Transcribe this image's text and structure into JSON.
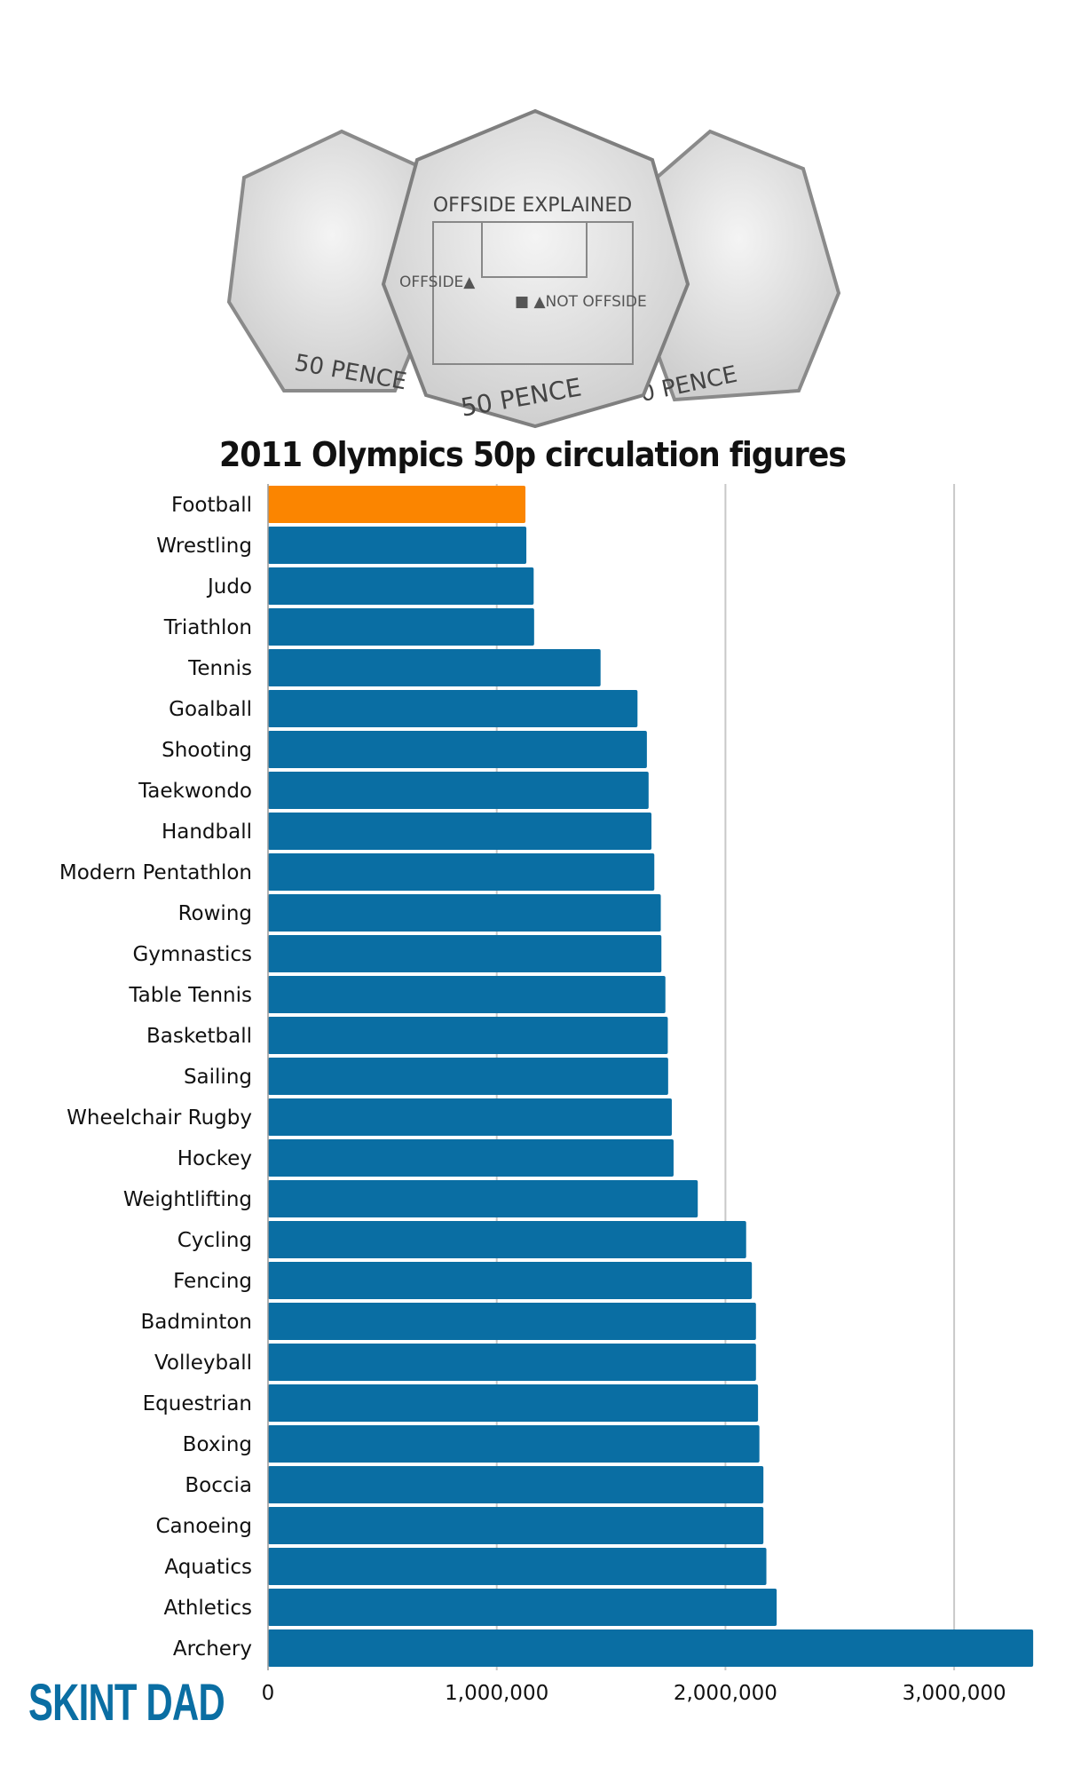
{
  "coins": {
    "left_coin_text": "50 PENCE",
    "center_coin_title": "OFFSIDE EXPLAINED",
    "center_coin_offside": "OFFSIDE▲",
    "center_coin_not_offside": "■ ▲NOT OFFSIDE",
    "center_coin_text": "50 PENCE",
    "right_coin_text": "0 PENCE"
  },
  "logo": "SKINT DAD",
  "colors": {
    "bar": "#0a6ea3",
    "highlight": "#fb8500",
    "grid": "#c8c8c8"
  },
  "chart_data": {
    "type": "bar",
    "orientation": "horizontal",
    "title": "2011 Olympics 50p circulation figures",
    "xlabel": "",
    "ylabel": "",
    "xlim": [
      0,
      3345500
    ],
    "xticks": [
      0,
      1000000,
      2000000,
      3000000
    ],
    "xtick_labels": [
      "0",
      "1,000,000",
      "2,000,000",
      "3,000,000"
    ],
    "grid": "vertical",
    "highlighted_category": "Football",
    "categories": [
      "Football",
      "Wrestling",
      "Judo",
      "Triathlon",
      "Tennis",
      "Goalball",
      "Shooting",
      "Taekwondo",
      "Handball",
      "Modern Pentathlon",
      "Rowing",
      "Gymnastics",
      "Table Tennis",
      "Basketball",
      "Sailing",
      "Wheelchair Rugby",
      "Hockey",
      "Weightlifting",
      "Cycling",
      "Fencing",
      "Badminton",
      "Volleyball",
      "Equestrian",
      "Boxing",
      "Boccia",
      "Canoeing",
      "Aquatics",
      "Athletics",
      "Archery"
    ],
    "values": [
      1125500,
      1129500,
      1161500,
      1163500,
      1454000,
      1615500,
      1656500,
      1664000,
      1676500,
      1689000,
      1717300,
      1720000,
      1737500,
      1748000,
      1749500,
      1765500,
      1773200,
      1879000,
      2090500,
      2115500,
      2133500,
      2133500,
      2142500,
      2148500,
      2166000,
      2166000,
      2179000,
      2224000,
      3345500
    ]
  }
}
